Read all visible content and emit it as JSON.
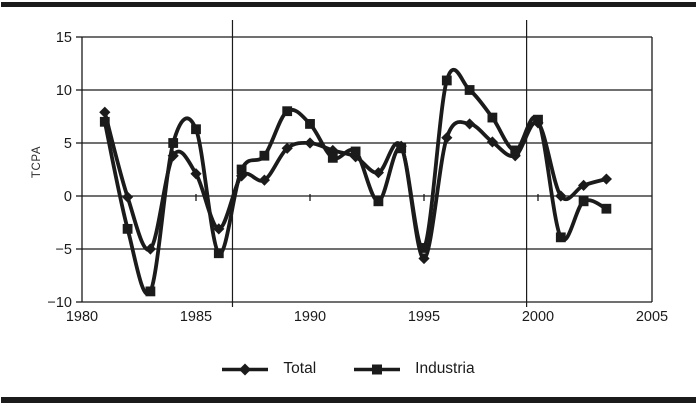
{
  "chart_data": {
    "type": "line",
    "title": "",
    "xlabel": "",
    "ylabel": "TCPA",
    "x": [
      1981,
      1982,
      1983,
      1984,
      1985,
      1986,
      1987,
      1988,
      1989,
      1990,
      1991,
      1992,
      1993,
      1994,
      1995,
      1996,
      1997,
      1998,
      1999,
      2000,
      2001,
      2002,
      2003
    ],
    "series": [
      {
        "name": "Total",
        "marker": "diamond",
        "values": [
          7.9,
          -0.1,
          -5.0,
          3.8,
          2.1,
          -3.1,
          1.9,
          1.5,
          4.5,
          5.0,
          4.3,
          3.7,
          2.2,
          4.7,
          -5.9,
          5.5,
          6.8,
          5.1,
          3.8,
          6.9,
          0.0,
          1.0,
          1.6
        ]
      },
      {
        "name": "Industria",
        "marker": "square",
        "values": [
          7.0,
          -3.1,
          -9.0,
          5.0,
          6.3,
          -5.4,
          2.5,
          3.8,
          8.0,
          6.8,
          3.6,
          4.2,
          -0.5,
          4.5,
          -4.9,
          10.9,
          10.0,
          7.4,
          4.3,
          7.2,
          -3.9,
          -0.5,
          -1.2
        ]
      }
    ],
    "xlim": [
      1980,
      2005
    ],
    "ylim": [
      -10,
      15
    ],
    "x_ticks": [
      1980,
      1985,
      1990,
      1995,
      2000,
      2005
    ],
    "x_tick_labels": [
      "1980",
      "1985",
      "1990",
      "1995",
      "2000",
      "2005"
    ],
    "y_ticks": [
      15,
      10,
      5,
      0,
      -5,
      -10
    ],
    "y_tick_labels": [
      "15",
      "10",
      "5",
      "0",
      "−5",
      "−10"
    ],
    "inner_vertical_lines_years": [
      1986.6,
      1999.5
    ],
    "zero_axis_tick_years": [
      1985,
      1990,
      1995,
      2000
    ],
    "grid": "horizontal-on",
    "legend_position": "bottom",
    "line_color": "#1b1b1b",
    "background_color": "#ffffff"
  },
  "legend": {
    "items": [
      {
        "label": "Total",
        "marker": "diamond"
      },
      {
        "label": "Industria",
        "marker": "square"
      }
    ]
  }
}
